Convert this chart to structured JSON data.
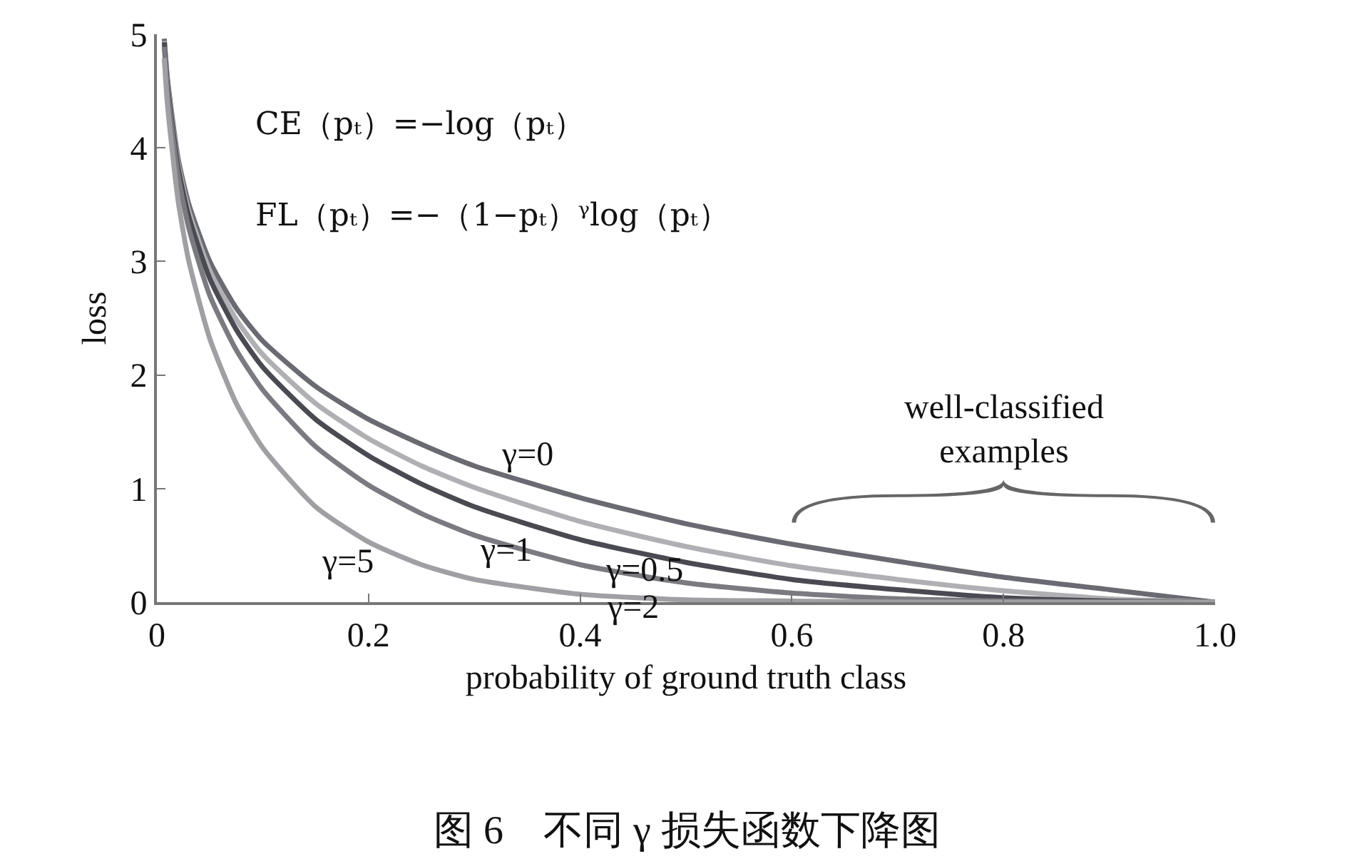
{
  "chart_data": {
    "type": "line",
    "xlabel": "probability of ground truth class",
    "ylabel": "loss",
    "x": [
      0.007,
      0.01,
      0.02,
      0.03,
      0.05,
      0.075,
      0.1,
      0.15,
      0.2,
      0.25,
      0.3,
      0.4,
      0.5,
      0.6,
      0.7,
      0.8,
      0.9,
      1.0
    ],
    "series": [
      {
        "color": "#6a6a72",
        "values": [
          4.96,
          4.61,
          3.91,
          3.51,
          3.0,
          2.59,
          2.3,
          1.9,
          1.61,
          1.39,
          1.2,
          0.92,
          0.69,
          0.51,
          0.36,
          0.22,
          0.11,
          0
        ]
      },
      {
        "color": "#b0b0b4",
        "values": [
          4.94,
          4.58,
          3.87,
          3.45,
          2.92,
          2.49,
          2.18,
          1.75,
          1.44,
          1.2,
          1.01,
          0.71,
          0.49,
          0.32,
          0.2,
          0.1,
          0.03,
          0
        ]
      },
      {
        "color": "#4a4a52",
        "values": [
          4.93,
          4.56,
          3.83,
          3.4,
          2.85,
          2.4,
          2.07,
          1.61,
          1.29,
          1.04,
          0.84,
          0.55,
          0.35,
          0.2,
          0.11,
          0.04,
          0.01,
          0
        ]
      },
      {
        "color": "#7a7a80",
        "values": [
          4.89,
          4.51,
          3.76,
          3.3,
          2.7,
          2.22,
          1.87,
          1.37,
          1.03,
          0.78,
          0.59,
          0.33,
          0.17,
          0.08,
          0.03,
          0.01,
          0,
          0
        ]
      },
      {
        "color": "#a0a0a4",
        "values": [
          4.79,
          4.38,
          3.54,
          3.01,
          2.32,
          1.75,
          1.36,
          0.84,
          0.53,
          0.33,
          0.2,
          0.07,
          0.02,
          0.01,
          0,
          0,
          0,
          0
        ]
      }
    ],
    "xlim": [
      0,
      1
    ],
    "ylim": [
      0,
      5
    ],
    "xticks": [
      0,
      0.2,
      0.4,
      0.6,
      0.8,
      {
        "value": 1,
        "label": "1.0"
      }
    ],
    "yticks": [
      0,
      1,
      2,
      3,
      4,
      5
    ],
    "marker": "none",
    "line_style": "solid",
    "annotations": [
      "CE（pₜ）=−log（pₜ）",
      "FL（pₜ）=−（1−pₜ）ᵞlog（pₜ）",
      "well-classified\nexamples",
      {
        "text": "γ=0",
        "x": 0.35,
        "y": 1.06
      },
      {
        "text": "γ=1",
        "x": 0.33,
        "y": 0.76
      },
      {
        "text": "γ=0.5",
        "x": 0.46,
        "y": 0.58
      },
      {
        "text": "γ=2",
        "x": 0.45,
        "y": 0.25
      },
      {
        "text": "γ=5",
        "x": 0.18,
        "y": 0.65
      },
      "图 6　不同 γ 损失函数下降图"
    ]
  }
}
